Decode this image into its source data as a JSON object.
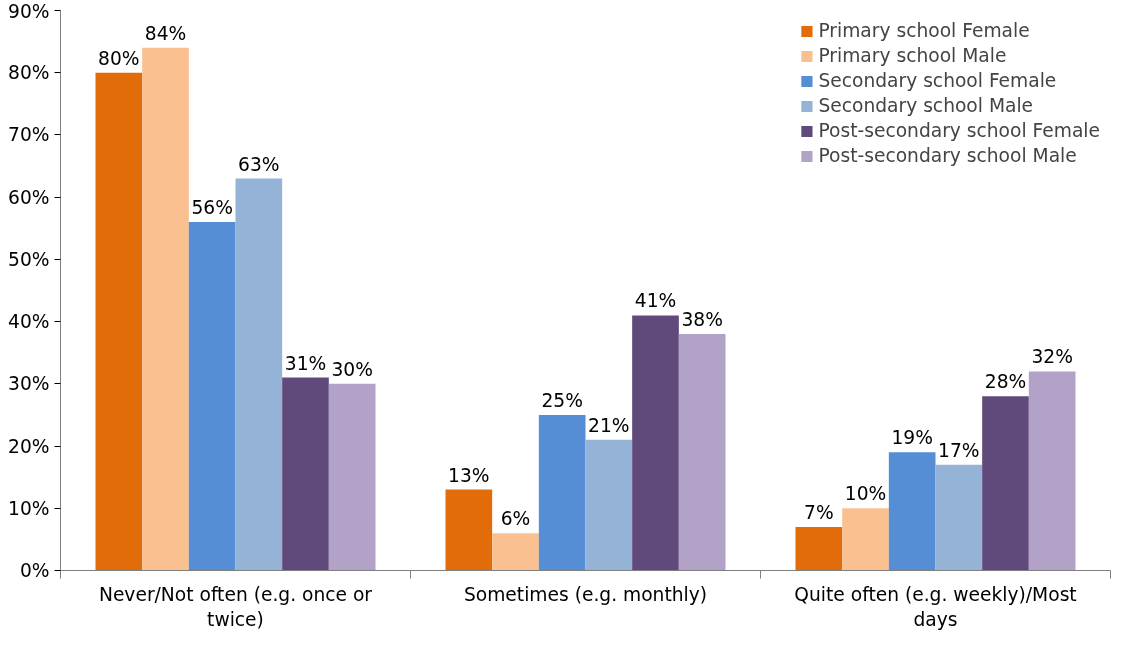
{
  "chart_data": {
    "type": "bar",
    "categories": [
      "Never/Not often (e.g. once or twice)",
      "Sometimes (e.g. monthly)",
      "Quite often (e.g. weekly)/Most days"
    ],
    "series": [
      {
        "name": "Primary school Female",
        "color": "#e36c0a",
        "values": [
          80,
          13,
          7
        ],
        "value_labels": [
          "80%",
          "13%",
          "7%"
        ]
      },
      {
        "name": "Primary school Male",
        "color": "#fac090",
        "values": [
          84,
          6,
          10
        ],
        "value_labels": [
          "84%",
          "6%",
          "10%"
        ]
      },
      {
        "name": "Secondary school Female",
        "color": "#558ed5",
        "values": [
          56,
          25,
          19
        ],
        "value_labels": [
          "56%",
          "25%",
          "19%"
        ]
      },
      {
        "name": "Secondary school Male",
        "color": "#95b3d7",
        "values": [
          63,
          21,
          17
        ],
        "value_labels": [
          "63%",
          "21%",
          "17%"
        ]
      },
      {
        "name": "Post-secondary school Female",
        "color": "#604a7b",
        "values": [
          31,
          41,
          28
        ],
        "value_labels": [
          "31%",
          "41%",
          "28%"
        ]
      },
      {
        "name": "Post-secondary school Male",
        "color": "#b3a2c7",
        "values": [
          30,
          38,
          32
        ],
        "value_labels": [
          "30%",
          "38%",
          "32%"
        ]
      }
    ],
    "ylim": [
      0,
      90
    ],
    "yticks": [
      {
        "value": 0,
        "label": "0%"
      },
      {
        "value": 10,
        "label": "10%"
      },
      {
        "value": 20,
        "label": "20%"
      },
      {
        "value": 30,
        "label": "30%"
      },
      {
        "value": 40,
        "label": "40%"
      },
      {
        "value": 50,
        "label": "50%"
      },
      {
        "value": 60,
        "label": "60%"
      },
      {
        "value": 70,
        "label": "70%"
      },
      {
        "value": 80,
        "label": "80%"
      },
      {
        "value": 90,
        "label": "90%"
      }
    ],
    "grid": false,
    "legend": "top right"
  }
}
